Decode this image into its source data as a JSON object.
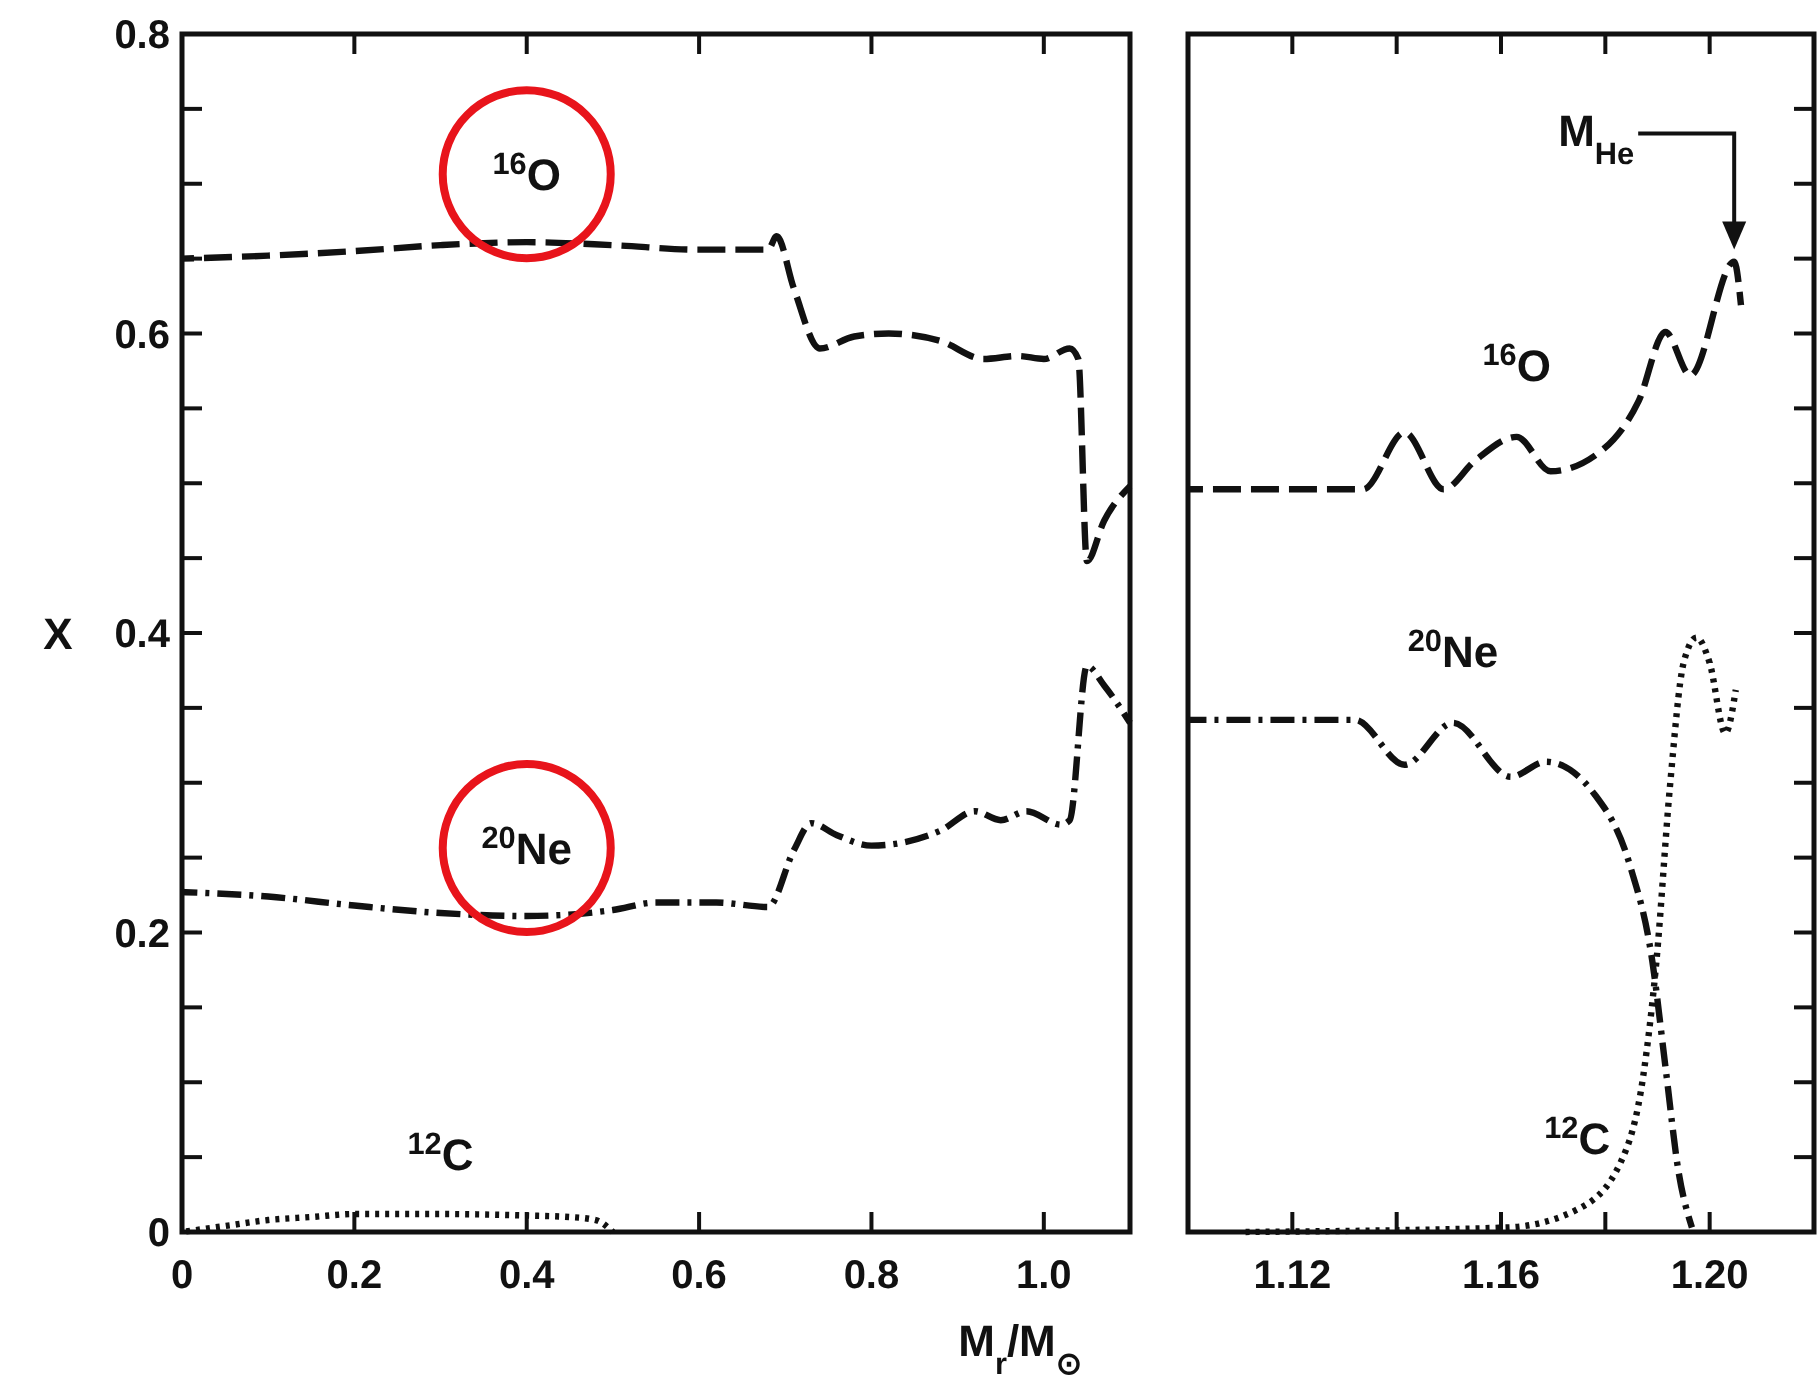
{
  "chart_data": [
    {
      "type": "line",
      "xlabel": "M$_{r}$/M$_{⊙}$",
      "ylabel": "X",
      "xlim": [
        0,
        1.1
      ],
      "xticks": [
        {
          "value": 0,
          "label": "0"
        },
        0.2,
        0.4,
        0.6,
        0.8,
        {
          "value": 1.0,
          "label": "1.0"
        }
      ],
      "ylim": [
        0,
        0.8
      ],
      "yticks": [
        {
          "value": 0,
          "label": "0"
        },
        {
          "value": 0.05,
          "label": null
        },
        {
          "value": 0.1,
          "label": null
        },
        {
          "value": 0.15,
          "label": null
        },
        0.2,
        {
          "value": 0.25,
          "label": null
        },
        {
          "value": 0.3,
          "label": null
        },
        {
          "value": 0.35,
          "label": null
        },
        0.4,
        {
          "value": 0.45,
          "label": null
        },
        {
          "value": 0.5,
          "label": null
        },
        {
          "value": 0.55,
          "label": null
        },
        0.6,
        {
          "value": 0.65,
          "label": null
        },
        {
          "value": 0.7,
          "label": null
        },
        {
          "value": 0.75,
          "label": null
        },
        0.8
      ],
      "grid": false,
      "series": [
        {
          "color": "#111111",
          "line_style": "dashed",
          "x": [
            0,
            0.1,
            0.2,
            0.3,
            0.4,
            0.5,
            0.6,
            0.68,
            0.69,
            0.71,
            0.74,
            0.78,
            0.82,
            0.88,
            0.93,
            0.97,
            1.0,
            1.03,
            1.04,
            1.05,
            1.07,
            1.1
          ],
          "values": [
            0.65,
            0.652,
            0.655,
            0.659,
            0.661,
            0.659,
            0.656,
            0.656,
            0.665,
            0.63,
            0.59,
            0.598,
            0.6,
            0.595,
            0.583,
            0.585,
            0.583,
            0.59,
            0.583,
            0.448,
            0.475,
            0.498
          ]
        },
        {
          "color": "#111111",
          "line_style": "dashdot",
          "x": [
            0,
            0.1,
            0.2,
            0.3,
            0.4,
            0.5,
            0.55,
            0.62,
            0.68,
            0.71,
            0.73,
            0.76,
            0.8,
            0.88,
            0.92,
            0.95,
            0.98,
            1.02,
            1.03,
            1.05,
            1.07,
            1.1
          ],
          "values": [
            0.227,
            0.224,
            0.218,
            0.213,
            0.211,
            0.215,
            0.22,
            0.22,
            0.217,
            0.255,
            0.273,
            0.265,
            0.258,
            0.268,
            0.281,
            0.275,
            0.281,
            0.272,
            0.275,
            0.378,
            0.365,
            0.34
          ]
        },
        {
          "color": "#111111",
          "line_style": "dotted",
          "x": [
            0,
            0.05,
            0.1,
            0.15,
            0.2,
            0.3,
            0.4,
            0.45,
            0.48,
            0.5
          ],
          "values": [
            0,
            0.004,
            0.008,
            0.01,
            0.012,
            0.012,
            0.011,
            0.01,
            0.008,
            0
          ]
        }
      ],
      "annotations": [
        {
          "text": "$^{16}$O",
          "x": 0.4,
          "y": 0.661
        },
        {
          "text": "$^{20}$Ne",
          "x": 0.4,
          "y": 0.211
        },
        {
          "text": "$^{12}$C",
          "x": 0.3,
          "y": 0.012
        }
      ]
    },
    {
      "type": "line",
      "xlim": [
        1.1,
        1.22
      ],
      "xticks": [
        1.12,
        {
          "value": 1.14,
          "label": null
        },
        1.16,
        {
          "value": 1.18,
          "label": null
        },
        {
          "value": 1.2,
          "label": "1.20"
        }
      ],
      "ylim": [
        0,
        0.8
      ],
      "yticks": [
        {
          "value": 0,
          "label": null
        },
        {
          "value": 0.05,
          "label": null
        },
        {
          "value": 0.1,
          "label": null
        },
        {
          "value": 0.15,
          "label": null
        },
        {
          "value": 0.2,
          "label": null
        },
        {
          "value": 0.25,
          "label": null
        },
        {
          "value": 0.3,
          "label": null
        },
        {
          "value": 0.35,
          "label": null
        },
        {
          "value": 0.4,
          "label": null
        },
        {
          "value": 0.45,
          "label": null
        },
        {
          "value": 0.5,
          "label": null
        },
        {
          "value": 0.55,
          "label": null
        },
        {
          "value": 0.6,
          "label": null
        },
        {
          "value": 0.65,
          "label": null
        },
        {
          "value": 0.7,
          "label": null
        },
        {
          "value": 0.75,
          "label": null
        },
        {
          "value": 0.8,
          "label": null
        }
      ],
      "tick_labels": "x",
      "grid": false,
      "series": [
        {
          "color": "#111111",
          "line_style": "dashed",
          "x": [
            1.1,
            1.1336,
            1.1415,
            1.149,
            1.155,
            1.163,
            1.1695,
            1.1797,
            1.1864,
            1.1915,
            1.1963,
            1.2047,
            1.206
          ],
          "values": [
            0.496,
            0.496,
            0.534,
            0.496,
            0.515,
            0.531,
            0.508,
            0.523,
            0.555,
            0.601,
            0.572,
            0.648,
            0.619
          ]
        },
        {
          "color": "#111111",
          "line_style": "dashdot",
          "x": [
            1.1,
            1.132,
            1.1415,
            1.1508,
            1.1619,
            1.1686,
            1.178,
            1.1847,
            1.189,
            1.1915,
            1.194,
            1.1966
          ],
          "values": [
            0.342,
            0.342,
            0.312,
            0.34,
            0.304,
            0.314,
            0.292,
            0.245,
            0.181,
            0.111,
            0.041,
            0.003
          ]
        },
        {
          "color": "#111111",
          "line_style": "dotted",
          "x": [
            1.11,
            1.161,
            1.1746,
            1.183,
            1.1873,
            1.1898,
            1.1924,
            1.195,
            1.1975,
            1.2,
            1.203,
            1.205
          ],
          "values": [
            0,
            0.003,
            0.015,
            0.047,
            0.105,
            0.181,
            0.298,
            0.38,
            0.397,
            0.38,
            0.333,
            0.362
          ]
        }
      ],
      "annotations": [
        {
          "text": "$^{16}$O",
          "x": 1.163,
          "y": 0.531
        },
        {
          "text": "$^{20}$Ne",
          "x": 1.1508,
          "y": 0.34
        },
        {
          "text": "$^{12}$C",
          "x": 1.1746,
          "y": 0.015
        },
        "M$_{He}$"
      ]
    }
  ]
}
